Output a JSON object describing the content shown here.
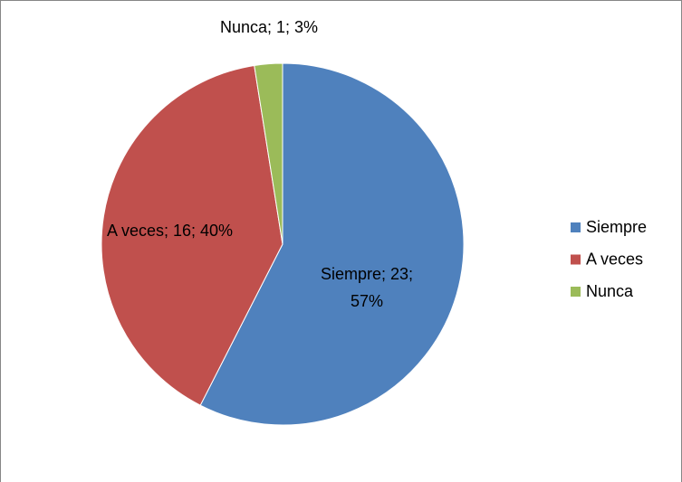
{
  "chart_data": {
    "type": "pie",
    "categories": [
      "Siempre",
      "A veces",
      "Nunca"
    ],
    "values": [
      23,
      16,
      1
    ],
    "value_labels": [
      "Siempre; 23; 57%",
      "A veces; 16; 40%",
      "Nunca; 1; 3%"
    ],
    "colors": [
      "#4f81bd",
      "#c0504d",
      "#9bbb59"
    ],
    "legend": "right"
  }
}
